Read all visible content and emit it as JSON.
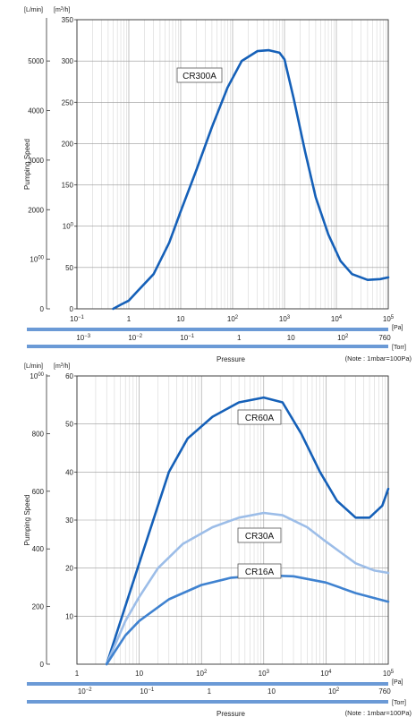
{
  "colors": {
    "dark_blue": "#1560b8",
    "light_blue": "#9cbde8",
    "mid_blue": "#3f82d0",
    "pressure_bar": "#6b9ad6"
  },
  "chart_data": [
    {
      "type": "line",
      "x_scale": "log",
      "xlim": [
        0.1,
        100000
      ],
      "ylim_right": [
        0,
        350
      ],
      "ylim_left": [
        0,
        5833
      ],
      "ylabel": "Pumping Speed",
      "ylabel_left_unit": "[L/min]",
      "ylabel_right_unit": "[m3/h]",
      "xlabel": "Pressure",
      "left_ticks": [
        "0",
        "1000",
        "2000",
        "3000",
        "4000",
        "5000"
      ],
      "right_ticks": [
        "0",
        "50",
        "100",
        "150",
        "200",
        "250",
        "300",
        "350"
      ],
      "pa_ticks": [
        "10−1",
        "1",
        "10",
        "102",
        "103",
        "104",
        "105"
      ],
      "pa_unit": "[Pa]",
      "torr_ticks": [
        "10−3",
        "10−2",
        "10−1",
        "1",
        "10",
        "102",
        "760"
      ],
      "torr_unit": "[Torr]",
      "note": "(Note : 1mbar=100Pa)",
      "series": [
        {
          "name": "CR300A",
          "color": "#1560b8",
          "points": [
            [
              0.5,
              0
            ],
            [
              0.7,
              5
            ],
            [
              1,
              10
            ],
            [
              1.5,
              22
            ],
            [
              3,
              42
            ],
            [
              6,
              80
            ],
            [
              10,
              118
            ],
            [
              20,
              168
            ],
            [
              40,
              220
            ],
            [
              80,
              268
            ],
            [
              150,
              300
            ],
            [
              300,
              312
            ],
            [
              500,
              313
            ],
            [
              800,
              310
            ],
            [
              1000,
              302
            ],
            [
              1500,
              255
            ],
            [
              2500,
              190
            ],
            [
              4000,
              135
            ],
            [
              7000,
              90
            ],
            [
              12000,
              58
            ],
            [
              20000,
              42
            ],
            [
              40000,
              35
            ],
            [
              70000,
              36
            ],
            [
              100000,
              38
            ]
          ]
        }
      ]
    },
    {
      "type": "line",
      "x_scale": "log",
      "xlim": [
        1,
        100000
      ],
      "ylim_right": [
        0,
        60
      ],
      "ylim_left": [
        0,
        1000
      ],
      "ylabel": "Pumping Speed",
      "ylabel_left_unit": "[L/min]",
      "ylabel_right_unit": "[m3/h]",
      "xlabel": "Pressure",
      "left_ticks": [
        "0",
        "200",
        "400",
        "600",
        "800",
        "1000"
      ],
      "right_ticks": [
        "10",
        "20",
        "30",
        "40",
        "50",
        "60"
      ],
      "pa_ticks": [
        "1",
        "10",
        "102",
        "103",
        "104",
        "105"
      ],
      "pa_unit": "[Pa]",
      "torr_ticks": [
        "10−2",
        "10−1",
        "1",
        "10",
        "102",
        "760"
      ],
      "torr_unit": "[Torr]",
      "note": "(Note : 1mbar=100Pa)",
      "series": [
        {
          "name": "CR60A",
          "color": "#1560b8",
          "points": [
            [
              3,
              0
            ],
            [
              10,
              21
            ],
            [
              30,
              40
            ],
            [
              60,
              47
            ],
            [
              150,
              51.5
            ],
            [
              400,
              54.5
            ],
            [
              1000,
              55.5
            ],
            [
              2000,
              54.5
            ],
            [
              4000,
              48
            ],
            [
              8000,
              40
            ],
            [
              15000,
              34
            ],
            [
              30000,
              30.5
            ],
            [
              50000,
              30.5
            ],
            [
              80000,
              33
            ],
            [
              100000,
              36.5
            ]
          ]
        },
        {
          "name": "CR30A",
          "color": "#9cbde8",
          "points": [
            [
              3,
              0
            ],
            [
              6,
              9
            ],
            [
              10,
              14
            ],
            [
              20,
              20
            ],
            [
              50,
              25
            ],
            [
              150,
              28.5
            ],
            [
              400,
              30.5
            ],
            [
              1000,
              31.5
            ],
            [
              2000,
              31
            ],
            [
              5000,
              28.5
            ],
            [
              10000,
              25.5
            ],
            [
              30000,
              21
            ],
            [
              60000,
              19.5
            ],
            [
              100000,
              19
            ]
          ]
        },
        {
          "name": "CR16A",
          "color": "#3f82d0",
          "points": [
            [
              3,
              0
            ],
            [
              6,
              6
            ],
            [
              10,
              9
            ],
            [
              30,
              13.5
            ],
            [
              100,
              16.5
            ],
            [
              300,
              18
            ],
            [
              1000,
              18.5
            ],
            [
              3000,
              18.3
            ],
            [
              10000,
              17
            ],
            [
              30000,
              14.8
            ],
            [
              100000,
              13
            ]
          ]
        }
      ]
    }
  ]
}
